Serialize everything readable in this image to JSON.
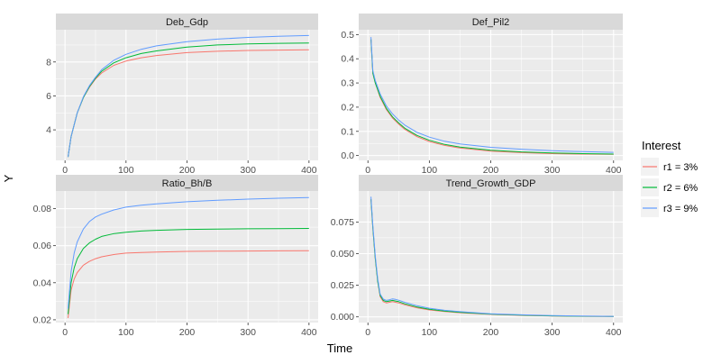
{
  "figure": {
    "xlabel": "Time",
    "ylabel": "Y"
  },
  "legend": {
    "title": "Interest",
    "placement": "right",
    "entries": [
      {
        "label": "r1 = 3%",
        "color": "#F8766D"
      },
      {
        "label": "r2 = 6%",
        "color": "#00BA38"
      },
      {
        "label": "r3 = 9%",
        "color": "#619CFF"
      }
    ]
  },
  "chart_data": [
    {
      "type": "line",
      "title": "Deb_Gdp",
      "xlim": [
        -15,
        415
      ],
      "ylim": [
        2.2,
        9.9
      ],
      "xticks": [
        0,
        100,
        200,
        300,
        400
      ],
      "xtick_labels": [
        "0",
        "100",
        "200",
        "300",
        "400"
      ],
      "yticks": [
        4,
        6,
        8
      ],
      "ytick_labels": [
        "4",
        "6",
        "8"
      ],
      "grid": true,
      "x": [
        5,
        10,
        20,
        30,
        40,
        50,
        60,
        80,
        100,
        125,
        150,
        200,
        250,
        300,
        350,
        400
      ],
      "series": [
        {
          "name": "r1 = 3%",
          "color": "#F8766D",
          "values": [
            2.4,
            3.6,
            5.0,
            5.9,
            6.5,
            7.0,
            7.35,
            7.8,
            8.05,
            8.25,
            8.38,
            8.55,
            8.63,
            8.68,
            8.7,
            8.72
          ]
        },
        {
          "name": "r2 = 6%",
          "color": "#00BA38",
          "values": [
            2.4,
            3.6,
            5.0,
            5.9,
            6.55,
            7.05,
            7.45,
            7.95,
            8.25,
            8.5,
            8.65,
            8.88,
            9.0,
            9.06,
            9.1,
            9.12
          ]
        },
        {
          "name": "r3 = 9%",
          "color": "#619CFF",
          "values": [
            2.4,
            3.6,
            5.0,
            5.95,
            6.6,
            7.1,
            7.55,
            8.1,
            8.45,
            8.75,
            8.95,
            9.2,
            9.35,
            9.45,
            9.52,
            9.56
          ]
        }
      ]
    },
    {
      "type": "line",
      "title": "Def_Pil2",
      "xlim": [
        -15,
        415
      ],
      "ylim": [
        -0.02,
        0.52
      ],
      "xticks": [
        0,
        100,
        200,
        300,
        400
      ],
      "xtick_labels": [
        "0",
        "100",
        "200",
        "300",
        "400"
      ],
      "yticks": [
        0.0,
        0.1,
        0.2,
        0.3,
        0.4,
        0.5
      ],
      "ytick_labels": [
        "0.0",
        "0.1",
        "0.2",
        "0.3",
        "0.4",
        "0.5"
      ],
      "grid": true,
      "x": [
        5,
        8,
        12,
        20,
        30,
        40,
        50,
        60,
        80,
        100,
        125,
        150,
        200,
        250,
        300,
        350,
        400
      ],
      "series": [
        {
          "name": "r1 = 3%",
          "color": "#F8766D",
          "values": [
            0.48,
            0.34,
            0.3,
            0.24,
            0.19,
            0.155,
            0.13,
            0.108,
            0.078,
            0.058,
            0.042,
            0.031,
            0.018,
            0.012,
            0.008,
            0.006,
            0.005
          ]
        },
        {
          "name": "r2 = 6%",
          "color": "#00BA38",
          "values": [
            0.48,
            0.34,
            0.3,
            0.245,
            0.195,
            0.16,
            0.135,
            0.113,
            0.083,
            0.063,
            0.046,
            0.035,
            0.022,
            0.015,
            0.011,
            0.008,
            0.006
          ]
        },
        {
          "name": "r3 = 9%",
          "color": "#619CFF",
          "values": [
            0.49,
            0.35,
            0.31,
            0.255,
            0.205,
            0.172,
            0.147,
            0.126,
            0.096,
            0.076,
            0.059,
            0.048,
            0.034,
            0.026,
            0.02,
            0.016,
            0.013
          ]
        }
      ]
    },
    {
      "type": "line",
      "title": "Ratio_Bh/B",
      "xlim": [
        -15,
        415
      ],
      "ylim": [
        0.0185,
        0.0895
      ],
      "xticks": [
        0,
        100,
        200,
        300,
        400
      ],
      "xtick_labels": [
        "0",
        "100",
        "200",
        "300",
        "400"
      ],
      "yticks": [
        0.02,
        0.04,
        0.06,
        0.08
      ],
      "ytick_labels": [
        "0.02",
        "0.04",
        "0.06",
        "0.08"
      ],
      "grid": true,
      "x": [
        5,
        10,
        15,
        20,
        30,
        40,
        50,
        60,
        80,
        100,
        125,
        150,
        200,
        250,
        300,
        350,
        400
      ],
      "series": [
        {
          "name": "r1 = 3%",
          "color": "#F8766D",
          "values": [
            0.021,
            0.036,
            0.042,
            0.0455,
            0.0495,
            0.0515,
            0.053,
            0.054,
            0.0552,
            0.056,
            0.0563,
            0.0566,
            0.0569,
            0.057,
            0.0571,
            0.0572,
            0.0573
          ]
        },
        {
          "name": "r2 = 6%",
          "color": "#00BA38",
          "values": [
            0.023,
            0.04,
            0.048,
            0.053,
            0.0585,
            0.0615,
            0.0635,
            0.065,
            0.0665,
            0.0673,
            0.0679,
            0.0683,
            0.0688,
            0.069,
            0.0691,
            0.0692,
            0.0693
          ]
        },
        {
          "name": "r3 = 9%",
          "color": "#619CFF",
          "values": [
            0.026,
            0.046,
            0.056,
            0.062,
            0.069,
            0.073,
            0.0755,
            0.077,
            0.0793,
            0.0808,
            0.0818,
            0.0826,
            0.0837,
            0.0845,
            0.0851,
            0.0856,
            0.086
          ]
        }
      ]
    },
    {
      "type": "line",
      "title": "Trend_Growth_GDP",
      "xlim": [
        -15,
        415
      ],
      "ylim": [
        -0.0045,
        0.0995
      ],
      "xticks": [
        0,
        100,
        200,
        300,
        400
      ],
      "xtick_labels": [
        "0",
        "100",
        "200",
        "300",
        "400"
      ],
      "yticks": [
        0.0,
        0.025,
        0.05,
        0.075
      ],
      "ytick_labels": [
        "0.000",
        "0.025",
        "0.050",
        "0.075"
      ],
      "grid": true,
      "x": [
        5,
        8,
        12,
        16,
        20,
        25,
        30,
        35,
        40,
        45,
        50,
        60,
        80,
        100,
        125,
        150,
        200,
        250,
        300,
        350,
        400
      ],
      "series": [
        {
          "name": "r1 = 3%",
          "color": "#F8766D",
          "values": [
            0.093,
            0.07,
            0.046,
            0.028,
            0.016,
            0.012,
            0.011,
            0.0115,
            0.012,
            0.0115,
            0.011,
            0.0095,
            0.0072,
            0.0055,
            0.0042,
            0.0033,
            0.002,
            0.0012,
            0.0007,
            0.0004,
            0.0003
          ]
        },
        {
          "name": "r2 = 6%",
          "color": "#00BA38",
          "values": [
            0.093,
            0.07,
            0.046,
            0.028,
            0.017,
            0.013,
            0.012,
            0.0125,
            0.013,
            0.0125,
            0.012,
            0.0103,
            0.0078,
            0.006,
            0.0046,
            0.0036,
            0.0022,
            0.0014,
            0.0008,
            0.0005,
            0.0003
          ]
        },
        {
          "name": "r3 = 9%",
          "color": "#619CFF",
          "values": [
            0.095,
            0.072,
            0.048,
            0.03,
            0.018,
            0.014,
            0.013,
            0.0135,
            0.0142,
            0.0138,
            0.0132,
            0.0115,
            0.0088,
            0.0068,
            0.0052,
            0.0041,
            0.0025,
            0.0016,
            0.001,
            0.0006,
            0.0004
          ]
        }
      ]
    }
  ]
}
